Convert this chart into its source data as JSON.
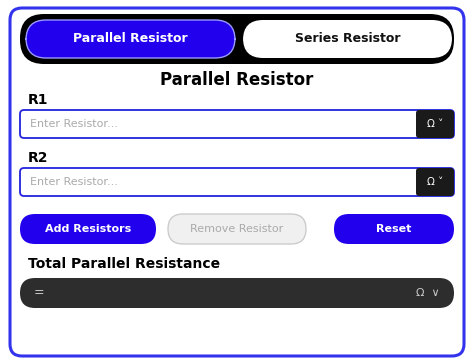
{
  "bg_color": "#ffffff",
  "outer_border_color": "#3333ee",
  "tab_bar_bg": "#000000",
  "tab_active_text": "Parallel Resistor",
  "tab_active_bg": "#2200ee",
  "tab_active_text_color": "#ffffff",
  "tab_active_border": "#9999ff",
  "tab_inactive_text": "Series Resistor",
  "tab_inactive_bg": "#ffffff",
  "tab_inactive_text_color": "#111111",
  "title": "Parallel Resistor",
  "r1_label": "R1",
  "r2_label": "R2",
  "placeholder_text": "Enter Resistor...",
  "input_border_color": "#2222dd",
  "input_bg": "#ffffff",
  "omega_bg": "#1a1a1a",
  "btn_add_text": "Add Resistors",
  "btn_add_bg": "#2200ee",
  "btn_remove_text": "Remove Resistor",
  "btn_remove_bg": "#f0f0f0",
  "btn_remove_text_color": "#aaaaaa",
  "btn_remove_border": "#cccccc",
  "btn_reset_text": "Reset",
  "btn_reset_bg": "#2200ee",
  "total_label": "Total Parallel Resistance",
  "result_bg": "#2d2d2d",
  "result_text": "=",
  "result_omega": "Ω  ∨",
  "omega_label": "Ω∨"
}
